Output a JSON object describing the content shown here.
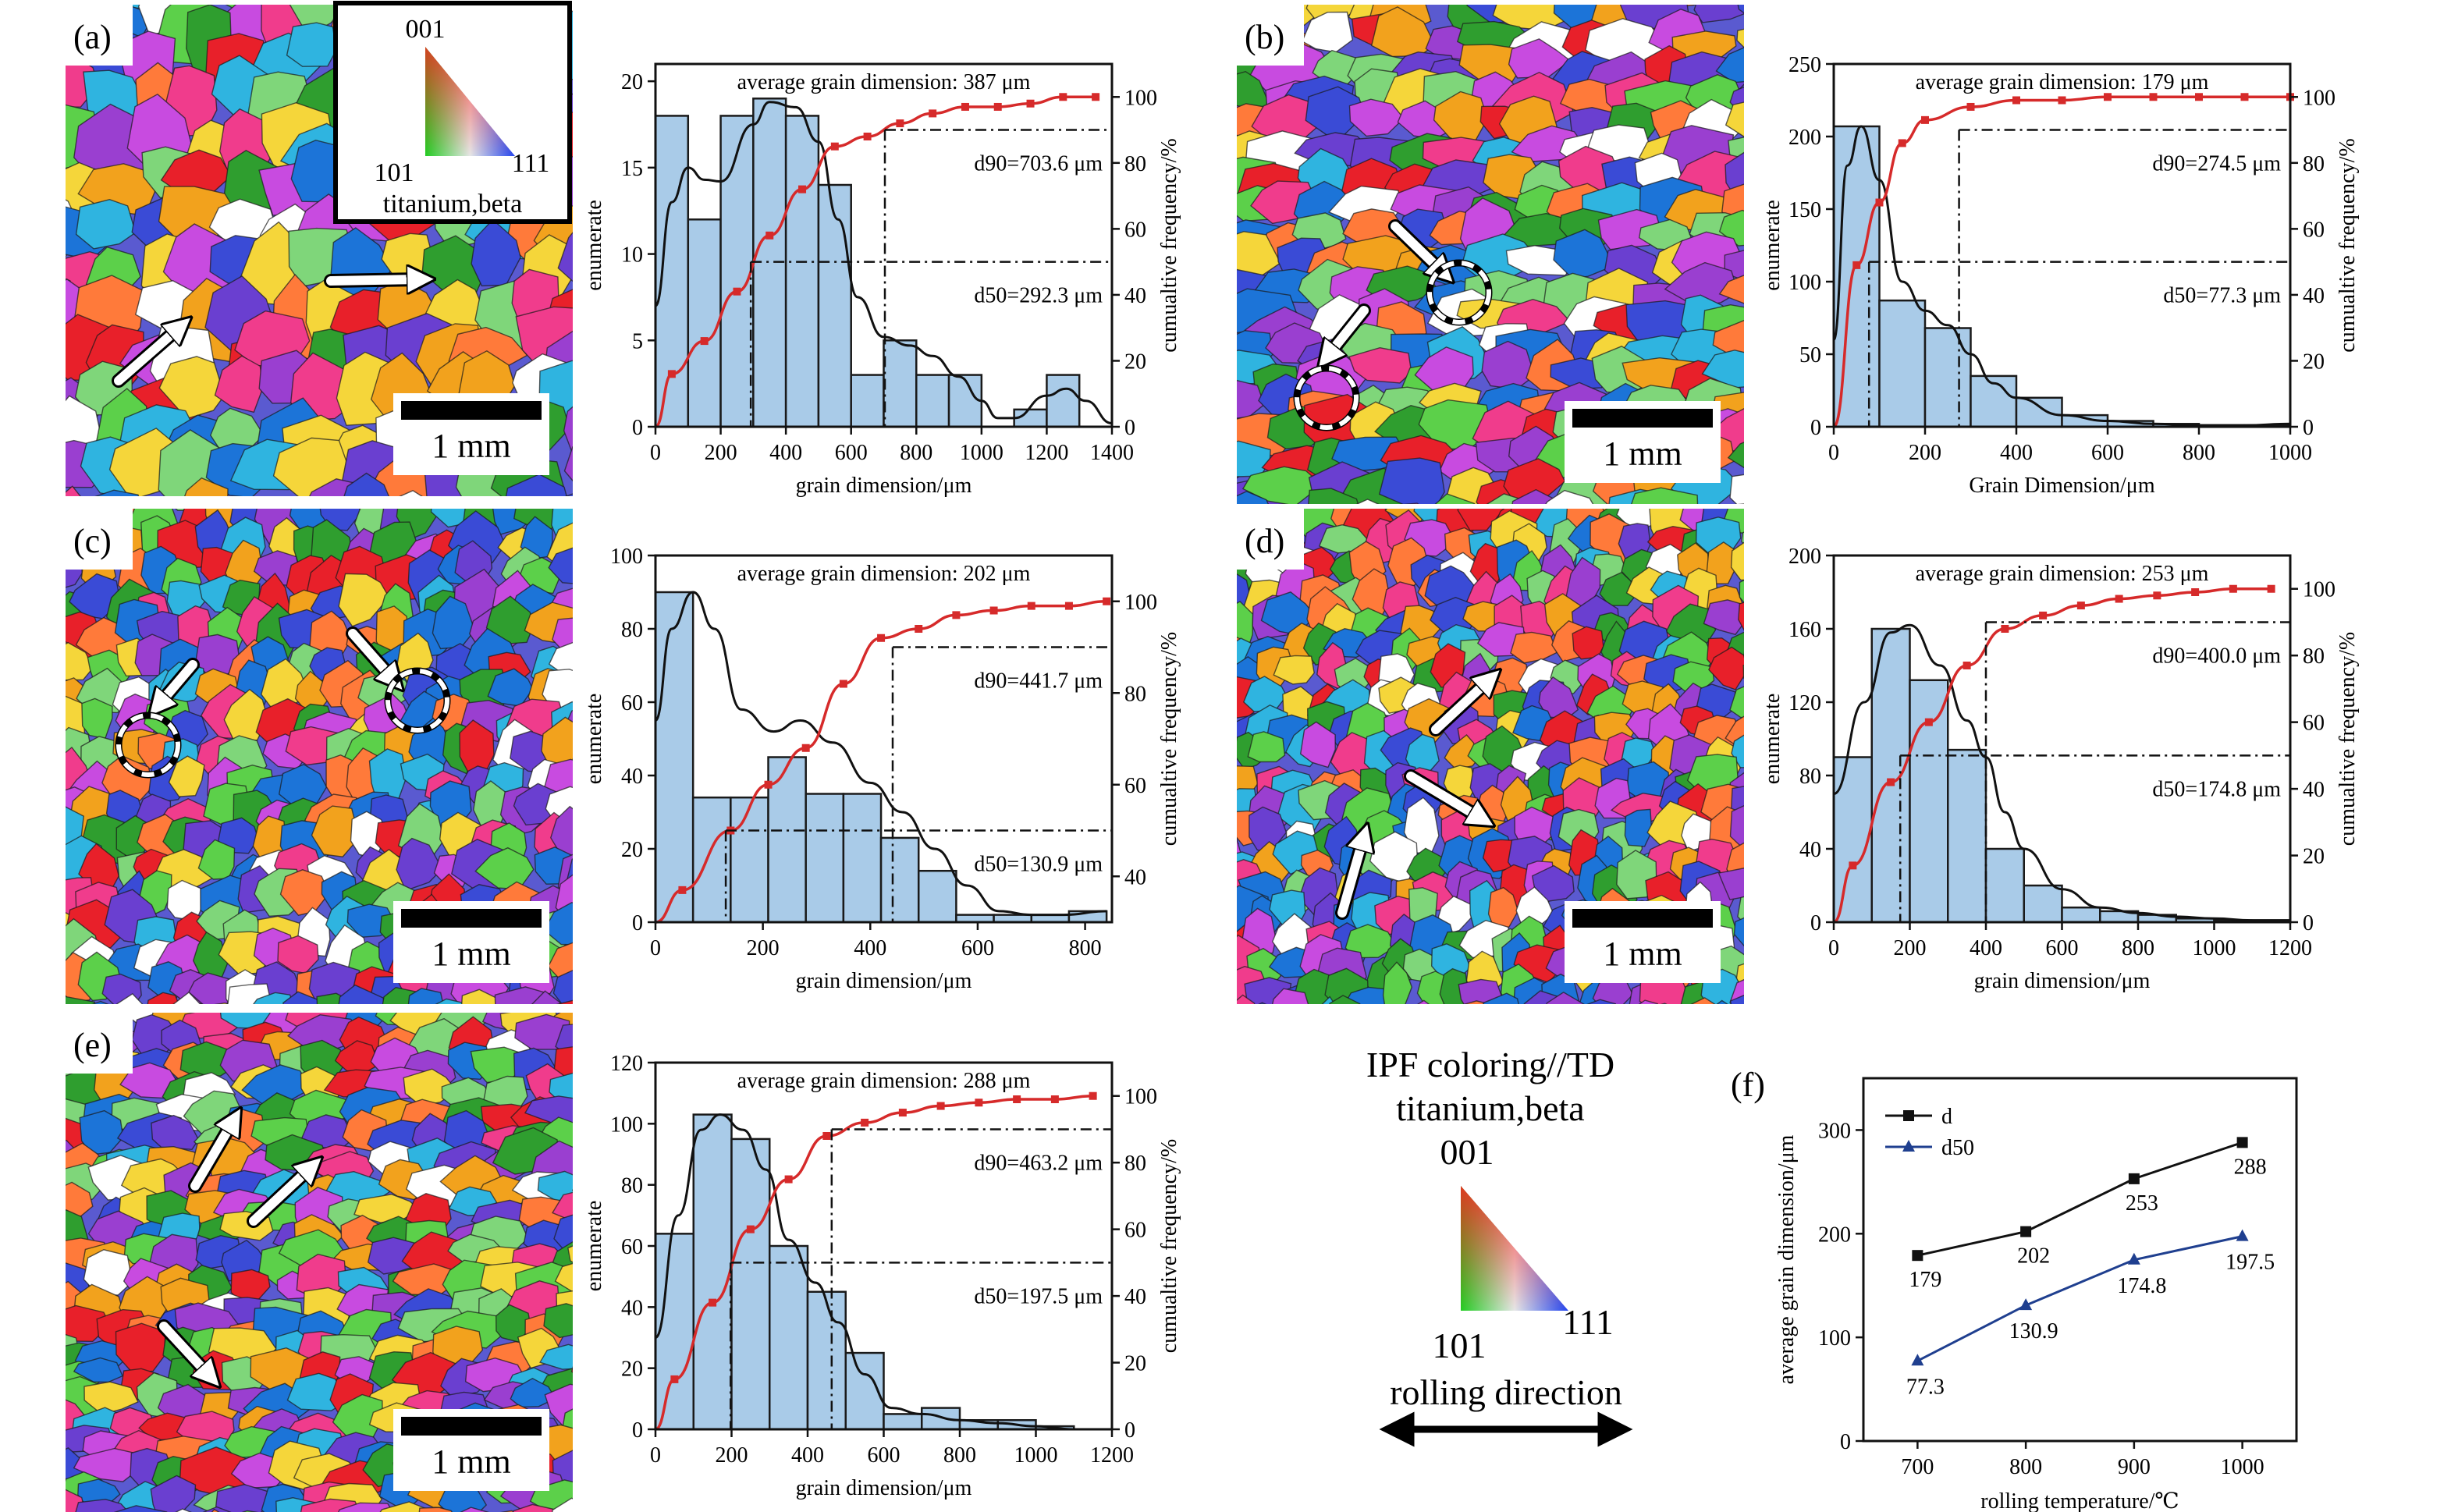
{
  "panels": [
    {
      "id": "a",
      "label": "(a)",
      "scale_bar": "1 mm",
      "inset_key": {
        "top": "001",
        "left": "101",
        "right": "111",
        "phase": "titanium,beta"
      },
      "arrows": 2,
      "circles": 0,
      "histogram": {
        "type": "bar",
        "bin_edges": [
          0,
          100,
          200,
          300,
          400,
          500,
          600,
          700,
          800,
          900,
          1000,
          1100,
          1200,
          1300,
          1400
        ],
        "counts": [
          18,
          12,
          18,
          19,
          18,
          14,
          3,
          5,
          3,
          3,
          0,
          1,
          3,
          0
        ],
        "density_curve": [
          [
            0,
            7
          ],
          [
            50,
            13
          ],
          [
            100,
            15
          ],
          [
            150,
            14.3
          ],
          [
            200,
            14.2
          ],
          [
            300,
            17.5
          ],
          [
            350,
            18.8
          ],
          [
            430,
            18.5
          ],
          [
            500,
            16.5
          ],
          [
            560,
            12
          ],
          [
            620,
            7.5
          ],
          [
            700,
            5.2
          ],
          [
            780,
            4.7
          ],
          [
            850,
            4.1
          ],
          [
            930,
            2.9
          ],
          [
            1000,
            1.5
          ],
          [
            1050,
            0.5
          ],
          [
            1100,
            0.5
          ],
          [
            1200,
            1.8
          ],
          [
            1260,
            2.2
          ],
          [
            1320,
            1.5
          ],
          [
            1400,
            0.2
          ]
        ],
        "cumulative": [
          [
            50,
            16
          ],
          [
            150,
            26
          ],
          [
            250,
            41
          ],
          [
            350,
            58
          ],
          [
            450,
            72
          ],
          [
            550,
            85
          ],
          [
            650,
            88
          ],
          [
            750,
            92
          ],
          [
            850,
            95
          ],
          [
            950,
            97
          ],
          [
            1050,
            97
          ],
          [
            1150,
            98
          ],
          [
            1250,
            100
          ],
          [
            1350,
            100
          ]
        ],
        "title": "average grain dimension: 387 μm",
        "xlabel": "grain dimension/μm",
        "ylabel": "enumerate",
        "y2label": "cumualtive frequency/%",
        "xlim": [
          0,
          1400
        ],
        "ylim": [
          0,
          21
        ],
        "y2lim": [
          0,
          110
        ],
        "xticks": [
          0,
          200,
          400,
          600,
          800,
          1000,
          1200,
          1400
        ],
        "yticks": [
          0,
          5,
          10,
          15,
          20
        ],
        "y2ticks": [
          0,
          20,
          40,
          60,
          80,
          100
        ],
        "d90": {
          "x": 703.6,
          "y": 90,
          "label": "d90=703.6 μm"
        },
        "d50": {
          "x": 292.3,
          "y": 50,
          "label": "d50=292.3 μm"
        }
      }
    },
    {
      "id": "b",
      "label": "(b)",
      "scale_bar": "1 mm",
      "arrows": 2,
      "circles": 2,
      "histogram": {
        "type": "bar",
        "bin_edges": [
          0,
          100,
          200,
          300,
          400,
          500,
          600,
          700,
          800,
          900,
          1000
        ],
        "counts": [
          207,
          87,
          68,
          35,
          20,
          8,
          4,
          2,
          1,
          1
        ],
        "density_curve": [
          [
            0,
            60
          ],
          [
            30,
            180
          ],
          [
            60,
            207
          ],
          [
            100,
            170
          ],
          [
            150,
            100
          ],
          [
            200,
            80
          ],
          [
            250,
            70
          ],
          [
            300,
            50
          ],
          [
            350,
            30
          ],
          [
            400,
            20
          ],
          [
            500,
            8
          ],
          [
            600,
            4
          ],
          [
            700,
            2
          ],
          [
            800,
            1
          ],
          [
            900,
            1
          ],
          [
            1000,
            2
          ]
        ],
        "cumulative": [
          [
            50,
            49
          ],
          [
            100,
            68
          ],
          [
            150,
            86
          ],
          [
            200,
            93
          ],
          [
            300,
            97
          ],
          [
            400,
            99
          ],
          [
            500,
            99
          ],
          [
            600,
            100
          ],
          [
            700,
            100
          ],
          [
            800,
            100
          ],
          [
            900,
            100
          ],
          [
            1000,
            100
          ]
        ],
        "title": "average grain dimension: 179 μm",
        "xlabel": "Grain Dimension/μm",
        "ylabel": "enumerate",
        "y2label": "cumualtive frequency/%",
        "xlim": [
          0,
          1000
        ],
        "ylim": [
          0,
          250
        ],
        "y2lim": [
          0,
          110
        ],
        "xticks": [
          0,
          200,
          400,
          600,
          800,
          1000
        ],
        "yticks": [
          0,
          50,
          100,
          150,
          200,
          250
        ],
        "y2ticks": [
          0,
          20,
          40,
          60,
          80,
          100
        ],
        "d90": {
          "x": 274.5,
          "y": 90,
          "label": "d90=274.5 μm"
        },
        "d50": {
          "x": 77.3,
          "y": 50,
          "label": "d50=77.3 μm"
        }
      }
    },
    {
      "id": "c",
      "label": "(c)",
      "scale_bar": "1 mm",
      "arrows": 2,
      "circles": 2,
      "histogram": {
        "type": "bar",
        "bin_edges": [
          0,
          70,
          140,
          210,
          280,
          350,
          420,
          490,
          560,
          630,
          700,
          770,
          840
        ],
        "counts": [
          90,
          34,
          34,
          45,
          35,
          35,
          23,
          14,
          2,
          2,
          2,
          3
        ],
        "density_curve": [
          [
            0,
            55
          ],
          [
            30,
            80
          ],
          [
            70,
            90
          ],
          [
            110,
            80
          ],
          [
            160,
            58
          ],
          [
            220,
            52
          ],
          [
            270,
            55
          ],
          [
            330,
            49
          ],
          [
            400,
            38
          ],
          [
            460,
            30
          ],
          [
            520,
            20
          ],
          [
            580,
            10
          ],
          [
            640,
            3
          ],
          [
            700,
            2
          ],
          [
            760,
            2
          ],
          [
            840,
            3
          ]
        ],
        "cumulative": [
          [
            50,
            37
          ],
          [
            140,
            50
          ],
          [
            210,
            60
          ],
          [
            280,
            68
          ],
          [
            350,
            82
          ],
          [
            420,
            92
          ],
          [
            490,
            94
          ],
          [
            560,
            97
          ],
          [
            630,
            98
          ],
          [
            700,
            99
          ],
          [
            770,
            99
          ],
          [
            840,
            100
          ]
        ],
        "title": "average grain dimension: 202 μm",
        "xlabel": "grain dimension/μm",
        "ylabel": "enumerate",
        "y2label": "cumualtive frequency/%",
        "xlim": [
          0,
          850
        ],
        "ylim": [
          0,
          100
        ],
        "y2lim": [
          30,
          110
        ],
        "xticks": [
          0,
          200,
          400,
          600,
          800
        ],
        "yticks": [
          0,
          20,
          40,
          60,
          80,
          100
        ],
        "y2ticks": [
          40,
          60,
          80,
          100
        ],
        "d90": {
          "x": 441.7,
          "y": 90,
          "label": "d90=441.7 μm"
        },
        "d50": {
          "x": 130.9,
          "y": 50,
          "label": "d50=130.9 μm"
        }
      }
    },
    {
      "id": "d",
      "label": "(d)",
      "scale_bar": "1 mm",
      "arrows": 3,
      "circles": 0,
      "histogram": {
        "type": "bar",
        "bin_edges": [
          0,
          100,
          200,
          300,
          400,
          500,
          600,
          700,
          800,
          900,
          1000,
          1100,
          1200
        ],
        "counts": [
          90,
          160,
          132,
          94,
          40,
          20,
          8,
          6,
          4,
          2,
          1,
          1
        ],
        "density_curve": [
          [
            0,
            70
          ],
          [
            80,
            120
          ],
          [
            150,
            158
          ],
          [
            200,
            162
          ],
          [
            280,
            140
          ],
          [
            350,
            110
          ],
          [
            400,
            90
          ],
          [
            450,
            60
          ],
          [
            500,
            40
          ],
          [
            600,
            18
          ],
          [
            700,
            8
          ],
          [
            800,
            5
          ],
          [
            900,
            3
          ],
          [
            1000,
            2
          ],
          [
            1100,
            1
          ],
          [
            1200,
            1
          ]
        ],
        "cumulative": [
          [
            50,
            17
          ],
          [
            150,
            42
          ],
          [
            250,
            60
          ],
          [
            350,
            77
          ],
          [
            450,
            88
          ],
          [
            550,
            92
          ],
          [
            650,
            95
          ],
          [
            750,
            97
          ],
          [
            850,
            98
          ],
          [
            950,
            99
          ],
          [
            1050,
            100
          ],
          [
            1150,
            100
          ]
        ],
        "title": "average grain dimension: 253 μm",
        "xlabel": "grain dimension/μm",
        "ylabel": "enumerate",
        "y2label": "cumualtive frequency/%",
        "xlim": [
          0,
          1200
        ],
        "ylim": [
          0,
          200
        ],
        "y2lim": [
          0,
          110
        ],
        "xticks": [
          0,
          200,
          400,
          600,
          800,
          1000,
          1200
        ],
        "yticks": [
          0,
          40,
          80,
          120,
          160,
          200
        ],
        "y2ticks": [
          0,
          20,
          40,
          60,
          80,
          100
        ],
        "d90": {
          "x": 400.0,
          "y": 90,
          "label": "d90=400.0 μm"
        },
        "d50": {
          "x": 174.8,
          "y": 50,
          "label": "d50=174.8 μm"
        }
      }
    },
    {
      "id": "e",
      "label": "(e)",
      "scale_bar": "1 mm",
      "arrows": 3,
      "circles": 0,
      "histogram": {
        "type": "bar",
        "bin_edges": [
          0,
          100,
          200,
          300,
          400,
          500,
          600,
          700,
          800,
          900,
          1000,
          1100,
          1200
        ],
        "counts": [
          64,
          103,
          95,
          60,
          45,
          25,
          5,
          7,
          3,
          3,
          1,
          0
        ],
        "density_curve": [
          [
            0,
            30
          ],
          [
            60,
            70
          ],
          [
            120,
            98
          ],
          [
            170,
            103
          ],
          [
            230,
            98
          ],
          [
            290,
            85
          ],
          [
            350,
            62
          ],
          [
            420,
            48
          ],
          [
            480,
            35
          ],
          [
            550,
            18
          ],
          [
            620,
            7
          ],
          [
            700,
            5
          ],
          [
            800,
            3
          ],
          [
            900,
            2
          ],
          [
            1000,
            1
          ],
          [
            1100,
            0
          ]
        ],
        "cumulative": [
          [
            50,
            15
          ],
          [
            150,
            38
          ],
          [
            250,
            60
          ],
          [
            350,
            75
          ],
          [
            450,
            88
          ],
          [
            550,
            92
          ],
          [
            650,
            95
          ],
          [
            750,
            97
          ],
          [
            850,
            98
          ],
          [
            950,
            99
          ],
          [
            1050,
            99
          ],
          [
            1150,
            100
          ]
        ],
        "title": "average grain dimension: 288 μm",
        "xlabel": "grain dimension/μm",
        "ylabel": "enumerate",
        "y2label": "cumualtive frequency/%",
        "xlim": [
          0,
          1200
        ],
        "ylim": [
          0,
          120
        ],
        "y2lim": [
          0,
          110
        ],
        "xticks": [
          0,
          200,
          400,
          600,
          800,
          1000,
          1200
        ],
        "yticks": [
          0,
          20,
          40,
          60,
          80,
          100,
          120
        ],
        "y2ticks": [
          0,
          20,
          40,
          60,
          80,
          100
        ],
        "d90": {
          "x": 463.2,
          "y": 90,
          "label": "d90=463.2 μm"
        },
        "d50": {
          "x": 197.5,
          "y": 50,
          "label": "d50=197.5 μm"
        }
      }
    }
  ],
  "legend_block": {
    "line1": "IPF coloring//TD",
    "line2": "titanium,beta",
    "top": "001",
    "left": "101",
    "right": "111",
    "rolling": "rolling direction"
  },
  "chart_data": {
    "label": "(f)",
    "type": "line",
    "x": [
      700,
      800,
      900,
      1000
    ],
    "series": [
      {
        "name": "d",
        "values": [
          179,
          202,
          253,
          288
        ],
        "labels": [
          "179",
          "202",
          "253",
          "288"
        ],
        "color": "#111111",
        "marker": "square"
      },
      {
        "name": "d50",
        "values": [
          77.3,
          130.9,
          174.8,
          197.5
        ],
        "labels": [
          "77.3",
          "130.9",
          "174.8",
          "197.5"
        ],
        "color": "#1f3f8f",
        "marker": "triangle"
      }
    ],
    "xlabel": "rolling temperature/℃",
    "ylabel": "average grain dimension/μm",
    "xlim": [
      650,
      1050
    ],
    "ylim": [
      0,
      350
    ],
    "xticks": [
      700,
      800,
      900,
      1000
    ],
    "yticks": [
      0,
      100,
      200,
      300
    ],
    "legend": "top-left"
  },
  "colors": {
    "bar_fill": "#a9cbe8",
    "bar_stroke": "#1a1a1a",
    "cumulative": "#d62a2a",
    "density": "#111111",
    "arrow": "#ffffff"
  }
}
